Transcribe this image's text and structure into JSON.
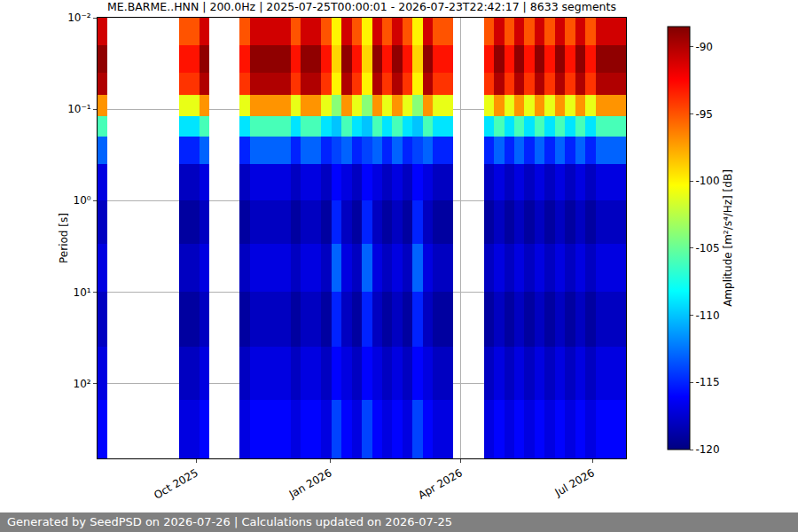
{
  "chart_data": {
    "type": "heatmap",
    "title": "ME.BARME..HNN | 200.0Hz | 2025-07-25T00:00:01 - 2026-07-23T22:42:17 | 8633 segments",
    "footer": "Generated by SeedPSD on 2026-07-26 | Calculations updated on 2026-07-25",
    "y_label": "Period [s]",
    "x": [
      "2025-07-25",
      "2025-08-01",
      "2025-08-08",
      "2025-08-15",
      "2025-08-22",
      "2025-08-29",
      "2025-09-05",
      "2025-09-12",
      "2025-09-19",
      "2025-09-26",
      "2025-10-03",
      "2025-10-10",
      "2025-10-17",
      "2025-10-24",
      "2025-10-31",
      "2025-11-07",
      "2025-11-14",
      "2025-11-21",
      "2025-11-28",
      "2025-12-05",
      "2025-12-12",
      "2025-12-19",
      "2025-12-26",
      "2026-01-02",
      "2026-01-09",
      "2026-01-16",
      "2026-01-23",
      "2026-01-30",
      "2026-02-06",
      "2026-02-13",
      "2026-02-20",
      "2026-02-27",
      "2026-03-06",
      "2026-03-13",
      "2026-03-20",
      "2026-03-27",
      "2026-04-03",
      "2026-04-10",
      "2026-04-17",
      "2026-04-24",
      "2026-05-01",
      "2026-05-08",
      "2026-05-15",
      "2026-05-22",
      "2026-05-29",
      "2026-06-05",
      "2026-06-12",
      "2026-06-19",
      "2026-06-26",
      "2026-07-03",
      "2026-07-10",
      "2026-07-17",
      "2026-07-24"
    ],
    "y": [
      0.01,
      0.02,
      0.04,
      0.07,
      0.12,
      0.2,
      0.4,
      1,
      3,
      10,
      40,
      150,
      660
    ],
    "z": [
      [
        -91,
        null,
        null,
        null,
        null,
        null,
        null,
        null,
        -95,
        -95,
        -91,
        null,
        null,
        null,
        -95,
        -91,
        -91,
        -91,
        -91,
        -95,
        -91,
        -91,
        -95,
        -100,
        -91,
        -95,
        -100,
        -91,
        -95,
        -91,
        -95,
        -100,
        -91,
        -95,
        -95,
        null,
        null,
        null,
        -95,
        -91,
        -95,
        -91,
        -95,
        -91,
        -95,
        -91,
        -95,
        -91,
        -95,
        -91,
        -91,
        -91
      ],
      [
        -89,
        null,
        null,
        null,
        null,
        null,
        null,
        null,
        -93,
        -93,
        -89,
        null,
        null,
        null,
        -93,
        -89,
        -89,
        -89,
        -89,
        -93,
        -89,
        -89,
        -93,
        -99,
        -89,
        -93,
        -99,
        -89,
        -93,
        -89,
        -93,
        -99,
        -89,
        -93,
        -93,
        null,
        null,
        null,
        -93,
        -89,
        -93,
        -89,
        -93,
        -89,
        -93,
        -89,
        -93,
        -89,
        -93,
        -89,
        -89,
        -89
      ],
      [
        -90,
        null,
        null,
        null,
        null,
        null,
        null,
        null,
        -94,
        -94,
        -90,
        null,
        null,
        null,
        -94,
        -90,
        -90,
        -90,
        -90,
        -94,
        -90,
        -90,
        -94,
        -100,
        -90,
        -94,
        -100,
        -90,
        -94,
        -90,
        -94,
        -100,
        -90,
        -94,
        -94,
        null,
        null,
        null,
        -94,
        -90,
        -94,
        -90,
        -94,
        -90,
        -94,
        -90,
        -94,
        -90,
        -94,
        -90,
        -90,
        -90
      ],
      [
        -97,
        null,
        null,
        null,
        null,
        null,
        null,
        null,
        -101,
        -101,
        -97,
        null,
        null,
        null,
        -101,
        -97,
        -97,
        -97,
        -97,
        -101,
        -97,
        -97,
        -101,
        -104,
        -97,
        -101,
        -104,
        -97,
        -101,
        -97,
        -101,
        -104,
        -97,
        -101,
        -101,
        null,
        null,
        null,
        -101,
        -97,
        -101,
        -97,
        -101,
        -97,
        -101,
        -97,
        -101,
        -97,
        -101,
        -97,
        -97,
        -97
      ],
      [
        -106,
        null,
        null,
        null,
        null,
        null,
        null,
        null,
        -109,
        -109,
        -106,
        null,
        null,
        null,
        -109,
        -106,
        -106,
        -106,
        -106,
        -109,
        -106,
        -106,
        -109,
        -110,
        -106,
        -109,
        -110,
        -106,
        -109,
        -106,
        -109,
        -110,
        -106,
        -109,
        -109,
        null,
        null,
        null,
        -109,
        -106,
        -109,
        -106,
        -109,
        -106,
        -109,
        -106,
        -109,
        -106,
        -109,
        -106,
        -106,
        -106
      ],
      [
        -113,
        null,
        null,
        null,
        null,
        null,
        null,
        null,
        -115,
        -115,
        -113,
        null,
        null,
        null,
        -115,
        -113,
        -113,
        -113,
        -113,
        -115,
        -113,
        -113,
        -115,
        -114,
        -113,
        -115,
        -114,
        -113,
        -115,
        -113,
        -115,
        -114,
        -113,
        -115,
        -115,
        null,
        null,
        null,
        -115,
        -113,
        -115,
        -113,
        -115,
        -113,
        -115,
        -113,
        -115,
        -113,
        -115,
        -113,
        -113,
        -113
      ],
      [
        -117,
        null,
        null,
        null,
        null,
        null,
        null,
        null,
        -118,
        -118,
        -117,
        null,
        null,
        null,
        -118,
        -117,
        -117,
        -117,
        -117,
        -118,
        -117,
        -117,
        -118,
        -116,
        -117,
        -118,
        -116,
        -117,
        -118,
        -117,
        -118,
        -116,
        -117,
        -118,
        -118,
        null,
        null,
        null,
        -118,
        -117,
        -118,
        -117,
        -118,
        -117,
        -118,
        -117,
        -118,
        -117,
        -118,
        -117,
        -117,
        -117
      ],
      [
        -118,
        null,
        null,
        null,
        null,
        null,
        null,
        null,
        -119,
        -119,
        -118,
        null,
        null,
        null,
        -119,
        -118,
        -118,
        -118,
        -118,
        -119,
        -118,
        -118,
        -119,
        -115,
        -118,
        -119,
        -115,
        -118,
        -119,
        -118,
        -119,
        -115,
        -118,
        -119,
        -119,
        null,
        null,
        null,
        -119,
        -118,
        -119,
        -118,
        -119,
        -118,
        -119,
        -118,
        -119,
        -118,
        -119,
        -118,
        -118,
        -118
      ],
      [
        -117,
        null,
        null,
        null,
        null,
        null,
        null,
        null,
        -118,
        -118,
        -117,
        null,
        null,
        null,
        -118,
        -117,
        -117,
        -117,
        -117,
        -118,
        -117,
        -117,
        -118,
        -113,
        -117,
        -118,
        -113,
        -117,
        -118,
        -117,
        -118,
        -113,
        -117,
        -118,
        -118,
        null,
        null,
        null,
        -118,
        -117,
        -118,
        -117,
        -118,
        -117,
        -118,
        -117,
        -118,
        -117,
        -118,
        -117,
        -117,
        -117
      ],
      [
        -118,
        null,
        null,
        null,
        null,
        null,
        null,
        null,
        -119,
        -119,
        -118,
        null,
        null,
        null,
        -119,
        -118,
        -118,
        -118,
        -118,
        -119,
        -118,
        -118,
        -119,
        -115,
        -118,
        -119,
        -115,
        -118,
        -119,
        -118,
        -119,
        -115,
        -118,
        -119,
        -119,
        null,
        null,
        null,
        -119,
        -118,
        -119,
        -118,
        -119,
        -118,
        -119,
        -118,
        -119,
        -118,
        -119,
        -118,
        -118,
        -118
      ],
      [
        -117,
        null,
        null,
        null,
        null,
        null,
        null,
        null,
        -118,
        -118,
        -117,
        null,
        null,
        null,
        -118,
        -117,
        -117,
        -117,
        -117,
        -118,
        -117,
        -117,
        -118,
        -116,
        -117,
        -118,
        -116,
        -117,
        -118,
        -117,
        -118,
        -116,
        -117,
        -118,
        -118,
        null,
        null,
        null,
        -118,
        -117,
        -118,
        -117,
        -118,
        -117,
        -118,
        -117,
        -118,
        -117,
        -118,
        -117,
        -117,
        -117
      ],
      [
        -116,
        null,
        null,
        null,
        null,
        null,
        null,
        null,
        -117,
        -117,
        -116,
        null,
        null,
        null,
        -117,
        -116,
        -116,
        -116,
        -116,
        -117,
        -116,
        -116,
        -117,
        -114,
        -116,
        -117,
        -114,
        -116,
        -117,
        -116,
        -117,
        -114,
        -116,
        -117,
        -117,
        null,
        null,
        null,
        -117,
        -116,
        -117,
        -116,
        -117,
        -116,
        -117,
        -116,
        -117,
        -116,
        -117,
        -116,
        -116,
        -116
      ]
    ],
    "xlim": [
      "2025-07-25T00:00:01",
      "2026-07-23T22:42:17"
    ],
    "xticks": [
      {
        "value": "2025-10-01",
        "label": "Oct 2025"
      },
      {
        "value": "2026-01-01",
        "label": "Jan 2026"
      },
      {
        "value": "2026-04-01",
        "label": "Apr 2026"
      },
      {
        "value": "2026-07-01",
        "label": "Jul 2026"
      }
    ],
    "ylim": [
      0.01,
      660
    ],
    "yticks": [
      {
        "value": 0.01,
        "label": "10⁻²"
      },
      {
        "value": 0.1,
        "label": "10⁻¹"
      },
      {
        "value": 1,
        "label": "10⁰"
      },
      {
        "value": 10,
        "label": "10¹"
      },
      {
        "value": 100,
        "label": "10²"
      }
    ],
    "log": "y",
    "grid": true,
    "colorbar": {
      "title": "Amplitude [m²/s⁴/Hz] [dB]",
      "range": [
        -120,
        -88.5
      ],
      "ticks": [
        -90,
        -95,
        -100,
        -105,
        -110,
        -115,
        -120
      ]
    }
  }
}
